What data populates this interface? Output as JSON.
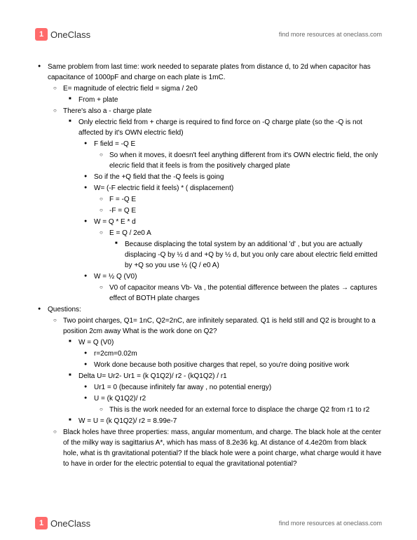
{
  "branding": {
    "logo_text": "OneClass",
    "logo_icon": "1",
    "resource_link": "find more resources at oneclass.com"
  },
  "notes": [
    {
      "level": 1,
      "style": "disc",
      "text": "Same problem from last time: work needed to separate plates from distance d, to 2d when capacitor has capacitance of 1000pF and charge on each plate is 1mC."
    },
    {
      "level": 2,
      "style": "circle",
      "text": "E= magnitude of electric field = sigma / 2e0"
    },
    {
      "level": 3,
      "style": "square",
      "text": "From + plate"
    },
    {
      "level": 2,
      "style": "circle",
      "text": "There's also a - charge plate"
    },
    {
      "level": 3,
      "style": "square",
      "text": "Only electric field from + charge is required to find force on -Q charge plate (so the -Q is not affected by it's OWN electric field)"
    },
    {
      "level": 4,
      "style": "disc",
      "text": "F field = -Q E"
    },
    {
      "level": 5,
      "style": "circle",
      "text": "So when it moves, it doesn't feel anything different from it's OWN electric field, the only elecric field that it feels is from the positively charged plate"
    },
    {
      "level": 4,
      "style": "disc",
      "text": "So if the +Q field that the  -Q feels is going"
    },
    {
      "level": 4,
      "style": "disc",
      "text": "W= (-F electric field it feels) * ( displacement)"
    },
    {
      "level": 5,
      "style": "circle",
      "text": "F = -Q E"
    },
    {
      "level": 5,
      "style": "circle",
      "text": "-F = Q E"
    },
    {
      "level": 4,
      "style": "disc",
      "text": "W = Q * E * d"
    },
    {
      "level": 5,
      "style": "circle",
      "text": "E = Q / 2e0 A"
    },
    {
      "level": 6,
      "style": "square",
      "text": "Because displacing the total system by an additional 'd' , but you are actually displacing -Q by ½ d and +Q by ½ d, but you only care about electric field emitted by +Q so you use ½   (Q / e0 A)"
    },
    {
      "level": 4,
      "style": "disc",
      "text": "W = ½ Q (V0)"
    },
    {
      "level": 5,
      "style": "circle",
      "text": "V0 of capacitor means Vb- Va , the potential difference between the plates → captures effect of BOTH plate charges"
    },
    {
      "level": 1,
      "style": "disc",
      "text": "Questions:"
    },
    {
      "level": 2,
      "style": "circle",
      "text": "Two point charges, Q1= 1nC, Q2=2nC, are infinitely separated.  Q1 is held still and Q2 is brought to a position 2cm away  What is the work done on Q2?"
    },
    {
      "level": 3,
      "style": "square",
      "text": "W = Q (V0)"
    },
    {
      "level": 4,
      "style": "disc",
      "text": "r=2cm=0.02m"
    },
    {
      "level": 4,
      "style": "disc",
      "text": "Work done because both positive charges that repel, so you're doing positive work"
    },
    {
      "level": 3,
      "style": "square",
      "text": "Delta U= Ur2- Ur1 = (k Q1Q2)/ r2  - (kQ1Q2) / r1"
    },
    {
      "level": 4,
      "style": "disc",
      "text": "Ur1 = 0 (because infinitely far away , no potential energy)"
    },
    {
      "level": 4,
      "style": "disc",
      "text": "U = (k Q1Q2)/ r2"
    },
    {
      "level": 5,
      "style": "circle",
      "text": "This is the work needed for an external force to displace the charge Q2 from r1 to r2"
    },
    {
      "level": 3,
      "style": "square",
      "text": "W = U = (k Q1Q2)/ r2 = 8.99e-7"
    },
    {
      "level": 2,
      "style": "circle",
      "text": "Black holes have three properties: mass, angular momentum, and charge.  The black hole at the center of the milky way is sagittarius A*, which has mass of 8.2e36 kg.  At distance of 4.4e20m from black hole, what is th gravitational potential? If the black hole were a point charge, what charge would it have to have in order for the electric potential to equal the gravitational potential?"
    }
  ]
}
